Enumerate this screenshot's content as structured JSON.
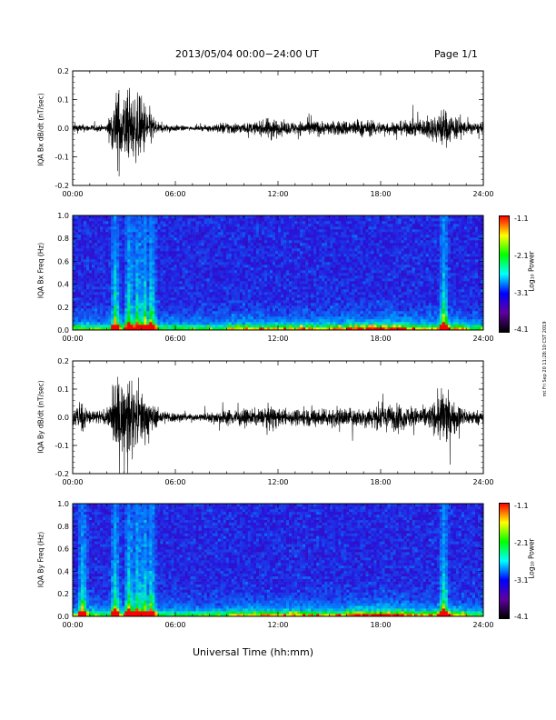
{
  "header": {
    "title": "2013/05/04  00:00−24:00 UT",
    "page": "Page 1/1"
  },
  "footer": {
    "xlabel": "Universal Time (hh:mm)"
  },
  "side_stamp": "mt Fri Sep 20 11:28:10 CST 2019",
  "colorbar": {
    "label": "Log₁₀ Power",
    "ticks": [
      "-1.1",
      "-2.1",
      "-3.1",
      "-4.1"
    ],
    "colors": [
      "#ff0000",
      "#ffff00",
      "#00ff00",
      "#00ffff",
      "#0000ff",
      "#6000a0",
      "#000000"
    ]
  },
  "chart_data": [
    {
      "type": "line",
      "title": "",
      "ylabel": "IQA Bx dB/dt (nT/sec)",
      "xlabel": "",
      "xlim": [
        "00:00",
        "24:00"
      ],
      "ylim": [
        -0.2,
        0.2
      ],
      "x_ticks": [
        "00:00",
        "06:00",
        "12:00",
        "18:00",
        "24:00"
      ],
      "y_ticks": [
        "-0.2",
        "-0.1",
        "0.0",
        "0.1",
        "0.2"
      ],
      "grid": false,
      "series": [
        {
          "x_hours": [
            0,
            1,
            2,
            2.6,
            3,
            3.5,
            4,
            4.5,
            5,
            6,
            7,
            8,
            9,
            10,
            11,
            11.7,
            12,
            13,
            14,
            15,
            16,
            17,
            18,
            19,
            20,
            21,
            21.7,
            22,
            23,
            24
          ],
          "amplitude": [
            0.03,
            0.02,
            0.02,
            0.25,
            0.22,
            0.2,
            0.2,
            0.12,
            0.03,
            0.02,
            0.01,
            0.02,
            0.04,
            0.03,
            0.04,
            0.08,
            0.04,
            0.04,
            0.05,
            0.04,
            0.05,
            0.05,
            0.04,
            0.04,
            0.05,
            0.07,
            0.12,
            0.1,
            0.04,
            0.03
          ]
        }
      ]
    },
    {
      "type": "heatmap",
      "title": "",
      "ylabel": "IQA Bx Freq (Hz)",
      "xlim": [
        "00:00",
        "24:00"
      ],
      "ylim": [
        0.0,
        1.0
      ],
      "x_ticks": [
        "00:00",
        "06:00",
        "12:00",
        "18:00",
        "24:00"
      ],
      "y_ticks": [
        "0.0",
        "0.2",
        "0.4",
        "0.6",
        "0.8",
        "1.0"
      ],
      "zlabel": "Log10 Power",
      "zlim": [
        -4.1,
        -1.1
      ],
      "bursts_hours": [
        2.5,
        3.3,
        3.8,
        4.2,
        4.6,
        21.7
      ]
    },
    {
      "type": "line",
      "title": "",
      "ylabel": "IQA By dB/dt (nT/sec)",
      "xlim": [
        "00:00",
        "24:00"
      ],
      "ylim": [
        -0.2,
        0.2
      ],
      "x_ticks": [
        "00:00",
        "06:00",
        "12:00",
        "18:00",
        "24:00"
      ],
      "y_ticks": [
        "-0.2",
        "-0.1",
        "0.0",
        "0.1",
        "0.2"
      ],
      "grid": false,
      "series": [
        {
          "x_hours": [
            0,
            0.5,
            1,
            2,
            2.6,
            3,
            3.5,
            4,
            4.5,
            5,
            6,
            7,
            8,
            9,
            10,
            11,
            11.7,
            12,
            13,
            14,
            15,
            16,
            17,
            18,
            19,
            20,
            21,
            21.7,
            22,
            23,
            24
          ],
          "amplitude": [
            0.05,
            0.1,
            0.05,
            0.04,
            0.25,
            0.22,
            0.2,
            0.18,
            0.1,
            0.05,
            0.03,
            0.02,
            0.03,
            0.05,
            0.05,
            0.05,
            0.08,
            0.05,
            0.05,
            0.06,
            0.06,
            0.06,
            0.06,
            0.08,
            0.08,
            0.06,
            0.08,
            0.2,
            0.12,
            0.05,
            0.04
          ]
        }
      ]
    },
    {
      "type": "heatmap",
      "title": "",
      "ylabel": "IQA By Freq (Hz)",
      "xlim": [
        "00:00",
        "24:00"
      ],
      "ylim": [
        0.0,
        1.0
      ],
      "x_ticks": [
        "00:00",
        "06:00",
        "12:00",
        "18:00",
        "24:00"
      ],
      "y_ticks": [
        "0.0",
        "0.2",
        "0.4",
        "0.6",
        "0.8",
        "1.0"
      ],
      "zlabel": "Log10 Power",
      "zlim": [
        -4.1,
        -1.1
      ],
      "bursts_hours": [
        0.6,
        2.5,
        3.3,
        3.8,
        4.2,
        4.6,
        21.7
      ]
    }
  ]
}
